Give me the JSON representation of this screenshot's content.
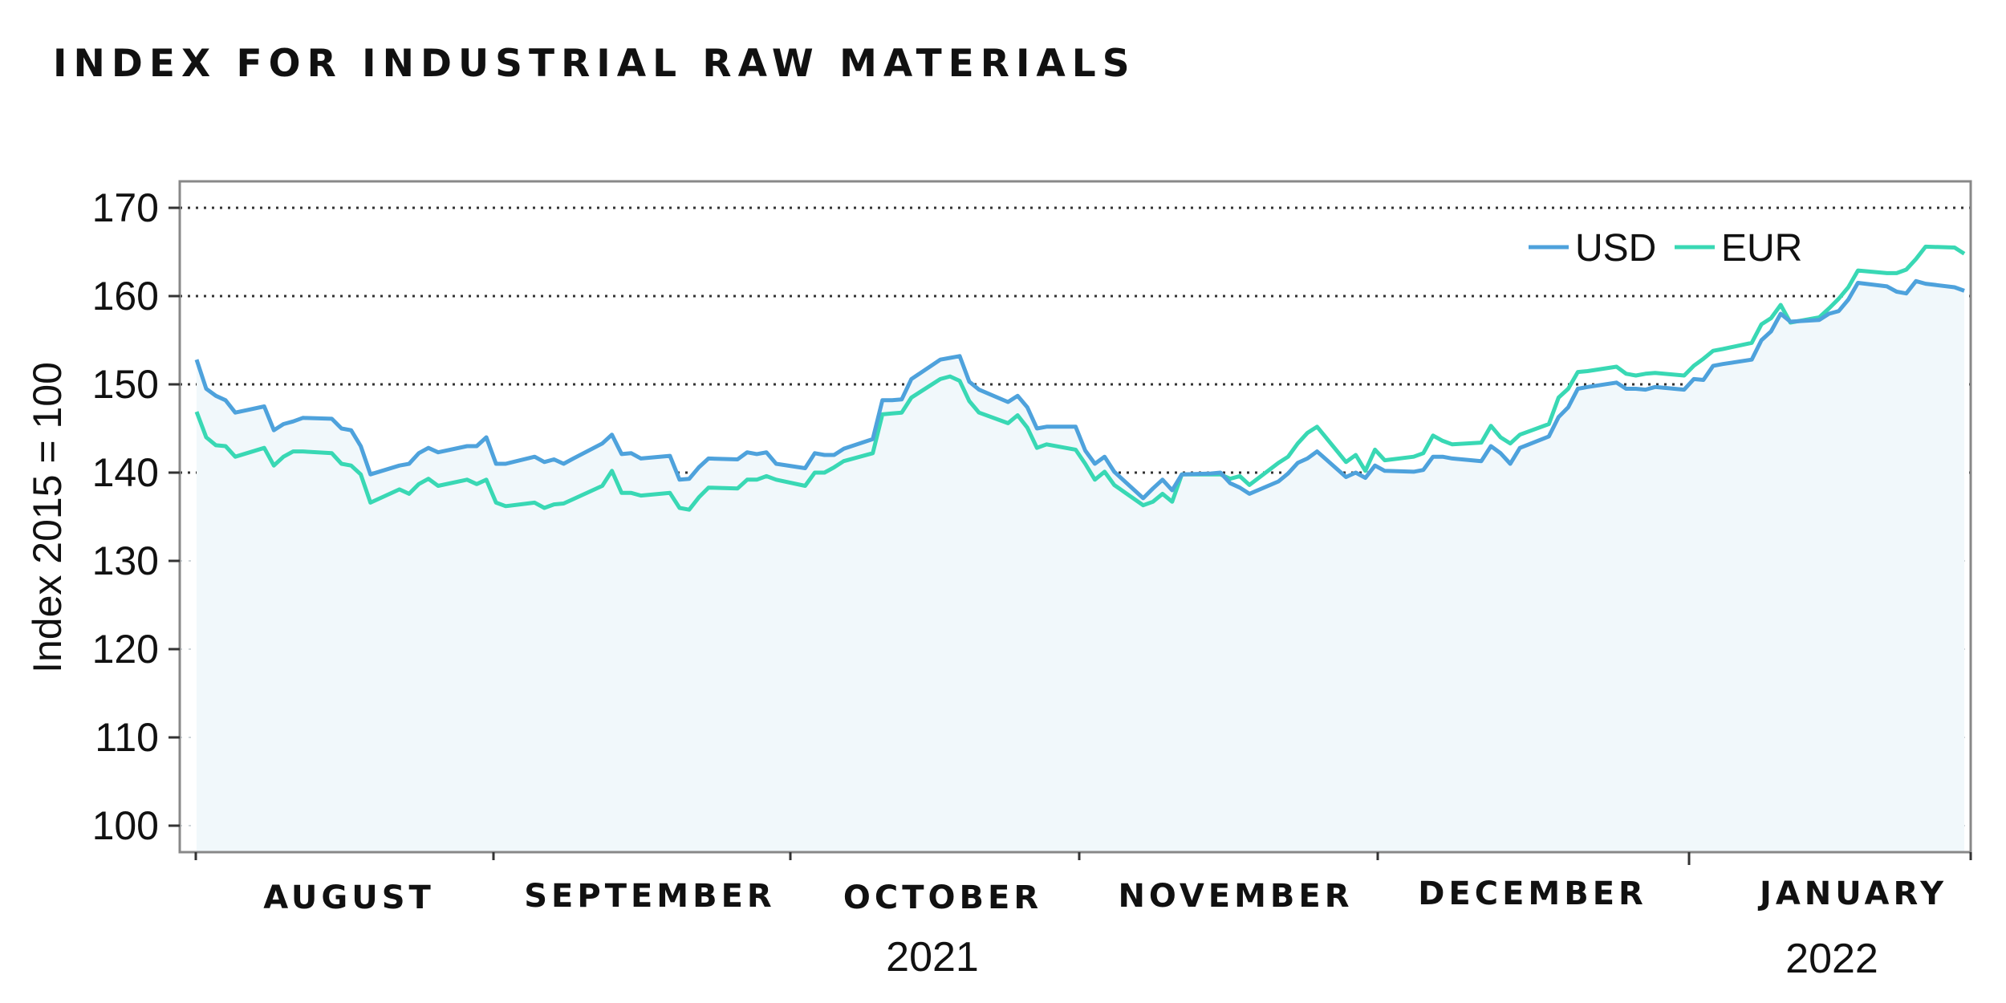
{
  "title": "INDEX FOR INDUSTRIAL RAW MATERIALS",
  "chart_data": {
    "type": "line",
    "title": "INDEX FOR INDUSTRIAL RAW MATERIALS",
    "ylabel": "Index 2015 = 100",
    "xlabel": "",
    "ylim": [
      97,
      173
    ],
    "y_ticks": [
      100,
      110,
      120,
      130,
      140,
      150,
      160,
      170
    ],
    "grid": "horizontal dotted, major lines at 140, 150, 160, 170",
    "legend_position": "top-right",
    "area_fill_under": "USD",
    "month_labels": [
      "AUGUST",
      "SEPTEMBER",
      "OCTOBER",
      "NOVEMBER",
      "DECEMBER",
      "JANUARY"
    ],
    "year_labels": [
      {
        "text": "2021",
        "under": "OCTOBER"
      },
      {
        "text": "2022",
        "under": "JANUARY"
      }
    ],
    "x_start": "2021-07-26",
    "x_end": "2022-01-26",
    "series": [
      {
        "name": "USD",
        "color": "#4ea2dc",
        "points": [
          [
            "2021-07-26",
            152.8
          ],
          [
            "2021-07-27",
            149.5
          ],
          [
            "2021-07-28",
            148.7
          ],
          [
            "2021-07-29",
            148.2
          ],
          [
            "2021-07-30",
            146.8
          ],
          [
            "2021-08-02",
            147.5
          ],
          [
            "2021-08-03",
            144.8
          ],
          [
            "2021-08-04",
            145.5
          ],
          [
            "2021-08-05",
            145.8
          ],
          [
            "2021-08-06",
            146.2
          ],
          [
            "2021-08-09",
            146.1
          ],
          [
            "2021-08-10",
            145.0
          ],
          [
            "2021-08-11",
            144.8
          ],
          [
            "2021-08-12",
            143.0
          ],
          [
            "2021-08-13",
            139.8
          ],
          [
            "2021-08-16",
            140.8
          ],
          [
            "2021-08-17",
            141.0
          ],
          [
            "2021-08-18",
            142.2
          ],
          [
            "2021-08-19",
            142.8
          ],
          [
            "2021-08-20",
            142.3
          ],
          [
            "2021-08-23",
            143.0
          ],
          [
            "2021-08-24",
            143.0
          ],
          [
            "2021-08-25",
            144.0
          ],
          [
            "2021-08-26",
            141.0
          ],
          [
            "2021-08-27",
            141.0
          ],
          [
            "2021-08-30",
            141.8
          ],
          [
            "2021-08-31",
            141.2
          ],
          [
            "2021-09-01",
            141.5
          ],
          [
            "2021-09-02",
            141.0
          ],
          [
            "2021-09-03",
            141.6
          ],
          [
            "2021-09-06",
            143.3
          ],
          [
            "2021-09-07",
            144.3
          ],
          [
            "2021-09-08",
            142.1
          ],
          [
            "2021-09-09",
            142.2
          ],
          [
            "2021-09-10",
            141.6
          ],
          [
            "2021-09-13",
            141.9
          ],
          [
            "2021-09-14",
            139.2
          ],
          [
            "2021-09-15",
            139.3
          ],
          [
            "2021-09-16",
            140.6
          ],
          [
            "2021-09-17",
            141.6
          ],
          [
            "2021-09-20",
            141.5
          ],
          [
            "2021-09-21",
            142.3
          ],
          [
            "2021-09-22",
            142.1
          ],
          [
            "2021-09-23",
            142.3
          ],
          [
            "2021-09-24",
            141.0
          ],
          [
            "2021-09-27",
            140.5
          ],
          [
            "2021-09-28",
            142.2
          ],
          [
            "2021-09-29",
            142.0
          ],
          [
            "2021-09-30",
            142.0
          ],
          [
            "2021-10-01",
            142.7
          ],
          [
            "2021-10-04",
            143.8
          ],
          [
            "2021-10-05",
            148.2
          ],
          [
            "2021-10-06",
            148.2
          ],
          [
            "2021-10-07",
            148.3
          ],
          [
            "2021-10-08",
            150.6
          ],
          [
            "2021-10-11",
            152.8
          ],
          [
            "2021-10-12",
            153.0
          ],
          [
            "2021-10-13",
            153.2
          ],
          [
            "2021-10-14",
            150.3
          ],
          [
            "2021-10-15",
            149.4
          ],
          [
            "2021-10-18",
            148.0
          ],
          [
            "2021-10-19",
            148.7
          ],
          [
            "2021-10-20",
            147.4
          ],
          [
            "2021-10-21",
            145.0
          ],
          [
            "2021-10-22",
            145.2
          ],
          [
            "2021-10-25",
            145.2
          ],
          [
            "2021-10-26",
            142.5
          ],
          [
            "2021-10-27",
            141.0
          ],
          [
            "2021-10-28",
            141.8
          ],
          [
            "2021-10-29",
            140.1
          ],
          [
            "2021-11-01",
            137.1
          ],
          [
            "2021-11-02",
            138.2
          ],
          [
            "2021-11-03",
            139.2
          ],
          [
            "2021-11-04",
            138.0
          ],
          [
            "2021-11-05",
            139.8
          ],
          [
            "2021-11-08",
            139.9
          ],
          [
            "2021-11-09",
            140.0
          ],
          [
            "2021-11-10",
            138.8
          ],
          [
            "2021-11-11",
            138.3
          ],
          [
            "2021-11-12",
            137.6
          ],
          [
            "2021-11-15",
            139.0
          ],
          [
            "2021-11-16",
            139.9
          ],
          [
            "2021-11-17",
            141.1
          ],
          [
            "2021-11-18",
            141.6
          ],
          [
            "2021-11-19",
            142.4
          ],
          [
            "2021-11-22",
            139.5
          ],
          [
            "2021-11-23",
            140.0
          ],
          [
            "2021-11-24",
            139.4
          ],
          [
            "2021-11-25",
            140.8
          ],
          [
            "2021-11-26",
            140.2
          ],
          [
            "2021-11-29",
            140.1
          ],
          [
            "2021-11-30",
            140.3
          ],
          [
            "2021-12-01",
            141.8
          ],
          [
            "2021-12-02",
            141.8
          ],
          [
            "2021-12-03",
            141.6
          ],
          [
            "2021-12-06",
            141.3
          ],
          [
            "2021-12-07",
            143.0
          ],
          [
            "2021-12-08",
            142.2
          ],
          [
            "2021-12-09",
            141.0
          ],
          [
            "2021-12-10",
            142.8
          ],
          [
            "2021-12-13",
            144.1
          ],
          [
            "2021-12-14",
            146.3
          ],
          [
            "2021-12-15",
            147.4
          ],
          [
            "2021-12-16",
            149.5
          ],
          [
            "2021-12-17",
            149.7
          ],
          [
            "2021-12-20",
            150.2
          ],
          [
            "2021-12-21",
            149.5
          ],
          [
            "2021-12-22",
            149.5
          ],
          [
            "2021-12-23",
            149.4
          ],
          [
            "2021-12-24",
            149.7
          ],
          [
            "2021-12-27",
            149.4
          ],
          [
            "2021-12-28",
            150.6
          ],
          [
            "2021-12-29",
            150.5
          ],
          [
            "2021-12-30",
            152.1
          ],
          [
            "2021-12-31",
            152.3
          ],
          [
            "2022-01-03",
            152.8
          ],
          [
            "2022-01-04",
            155.0
          ],
          [
            "2022-01-05",
            156.0
          ],
          [
            "2022-01-06",
            158.0
          ],
          [
            "2022-01-07",
            157.1
          ],
          [
            "2022-01-10",
            157.3
          ],
          [
            "2022-01-11",
            158.0
          ],
          [
            "2022-01-12",
            158.3
          ],
          [
            "2022-01-13",
            159.6
          ],
          [
            "2022-01-14",
            161.5
          ],
          [
            "2022-01-17",
            161.1
          ],
          [
            "2022-01-18",
            160.5
          ],
          [
            "2022-01-19",
            160.3
          ],
          [
            "2022-01-20",
            161.7
          ],
          [
            "2022-01-21",
            161.4
          ],
          [
            "2022-01-24",
            161.0
          ],
          [
            "2022-01-25",
            160.6
          ]
        ]
      },
      {
        "name": "EUR",
        "color": "#39d8b4",
        "points": [
          [
            "2021-07-26",
            146.9
          ],
          [
            "2021-07-27",
            144.0
          ],
          [
            "2021-07-28",
            143.1
          ],
          [
            "2021-07-29",
            143.0
          ],
          [
            "2021-07-30",
            141.8
          ],
          [
            "2021-08-02",
            142.8
          ],
          [
            "2021-08-03",
            140.8
          ],
          [
            "2021-08-04",
            141.8
          ],
          [
            "2021-08-05",
            142.4
          ],
          [
            "2021-08-06",
            142.4
          ],
          [
            "2021-08-09",
            142.2
          ],
          [
            "2021-08-10",
            141.0
          ],
          [
            "2021-08-11",
            140.8
          ],
          [
            "2021-08-12",
            139.8
          ],
          [
            "2021-08-13",
            136.6
          ],
          [
            "2021-08-16",
            138.1
          ],
          [
            "2021-08-17",
            137.6
          ],
          [
            "2021-08-18",
            138.7
          ],
          [
            "2021-08-19",
            139.3
          ],
          [
            "2021-08-20",
            138.5
          ],
          [
            "2021-08-23",
            139.2
          ],
          [
            "2021-08-24",
            138.7
          ],
          [
            "2021-08-25",
            139.2
          ],
          [
            "2021-08-26",
            136.6
          ],
          [
            "2021-08-27",
            136.2
          ],
          [
            "2021-08-30",
            136.6
          ],
          [
            "2021-08-31",
            136.0
          ],
          [
            "2021-09-01",
            136.4
          ],
          [
            "2021-09-02",
            136.5
          ],
          [
            "2021-09-03",
            137.0
          ],
          [
            "2021-09-06",
            138.5
          ],
          [
            "2021-09-07",
            140.2
          ],
          [
            "2021-09-08",
            137.7
          ],
          [
            "2021-09-09",
            137.7
          ],
          [
            "2021-09-10",
            137.4
          ],
          [
            "2021-09-13",
            137.7
          ],
          [
            "2021-09-14",
            136.0
          ],
          [
            "2021-09-15",
            135.8
          ],
          [
            "2021-09-16",
            137.2
          ],
          [
            "2021-09-17",
            138.3
          ],
          [
            "2021-09-20",
            138.2
          ],
          [
            "2021-09-21",
            139.2
          ],
          [
            "2021-09-22",
            139.2
          ],
          [
            "2021-09-23",
            139.6
          ],
          [
            "2021-09-24",
            139.2
          ],
          [
            "2021-09-27",
            138.5
          ],
          [
            "2021-09-28",
            140.0
          ],
          [
            "2021-09-29",
            140.0
          ],
          [
            "2021-09-30",
            140.6
          ],
          [
            "2021-10-01",
            141.3
          ],
          [
            "2021-10-04",
            142.2
          ],
          [
            "2021-10-05",
            146.6
          ],
          [
            "2021-10-06",
            146.7
          ],
          [
            "2021-10-07",
            146.8
          ],
          [
            "2021-10-08",
            148.5
          ],
          [
            "2021-10-11",
            150.6
          ],
          [
            "2021-10-12",
            150.9
          ],
          [
            "2021-10-13",
            150.4
          ],
          [
            "2021-10-14",
            148.1
          ],
          [
            "2021-10-15",
            146.8
          ],
          [
            "2021-10-18",
            145.6
          ],
          [
            "2021-10-19",
            146.5
          ],
          [
            "2021-10-20",
            145.1
          ],
          [
            "2021-10-21",
            142.8
          ],
          [
            "2021-10-22",
            143.2
          ],
          [
            "2021-10-25",
            142.6
          ],
          [
            "2021-10-26",
            141.0
          ],
          [
            "2021-10-27",
            139.2
          ],
          [
            "2021-10-28",
            140.1
          ],
          [
            "2021-10-29",
            138.6
          ],
          [
            "2021-11-01",
            136.3
          ],
          [
            "2021-11-02",
            136.7
          ],
          [
            "2021-11-03",
            137.6
          ],
          [
            "2021-11-04",
            136.7
          ],
          [
            "2021-11-05",
            139.8
          ],
          [
            "2021-11-08",
            139.8
          ],
          [
            "2021-11-09",
            139.8
          ],
          [
            "2021-11-10",
            139.3
          ],
          [
            "2021-11-11",
            139.6
          ],
          [
            "2021-11-12",
            138.6
          ],
          [
            "2021-11-15",
            141.1
          ],
          [
            "2021-11-16",
            141.8
          ],
          [
            "2021-11-17",
            143.3
          ],
          [
            "2021-11-18",
            144.5
          ],
          [
            "2021-11-19",
            145.2
          ],
          [
            "2021-11-22",
            141.2
          ],
          [
            "2021-11-23",
            142.0
          ],
          [
            "2021-11-24",
            140.2
          ],
          [
            "2021-11-25",
            142.6
          ],
          [
            "2021-11-26",
            141.4
          ],
          [
            "2021-11-29",
            141.8
          ],
          [
            "2021-11-30",
            142.2
          ],
          [
            "2021-12-01",
            144.2
          ],
          [
            "2021-12-02",
            143.6
          ],
          [
            "2021-12-03",
            143.2
          ],
          [
            "2021-12-06",
            143.4
          ],
          [
            "2021-12-07",
            145.3
          ],
          [
            "2021-12-08",
            144.0
          ],
          [
            "2021-12-09",
            143.3
          ],
          [
            "2021-12-10",
            144.3
          ],
          [
            "2021-12-13",
            145.5
          ],
          [
            "2021-12-14",
            148.5
          ],
          [
            "2021-12-15",
            149.5
          ],
          [
            "2021-12-16",
            151.4
          ],
          [
            "2021-12-17",
            151.5
          ],
          [
            "2021-12-20",
            152.0
          ],
          [
            "2021-12-21",
            151.2
          ],
          [
            "2021-12-22",
            151.0
          ],
          [
            "2021-12-23",
            151.2
          ],
          [
            "2021-12-24",
            151.3
          ],
          [
            "2021-12-27",
            151.0
          ],
          [
            "2021-12-28",
            152.1
          ],
          [
            "2021-12-29",
            152.9
          ],
          [
            "2021-12-30",
            153.8
          ],
          [
            "2021-12-31",
            154.0
          ],
          [
            "2022-01-03",
            154.7
          ],
          [
            "2022-01-04",
            156.8
          ],
          [
            "2022-01-05",
            157.5
          ],
          [
            "2022-01-06",
            159.0
          ],
          [
            "2022-01-07",
            157.0
          ],
          [
            "2022-01-10",
            157.6
          ],
          [
            "2022-01-11",
            158.6
          ],
          [
            "2022-01-12",
            159.7
          ],
          [
            "2022-01-13",
            161.0
          ],
          [
            "2022-01-14",
            162.9
          ],
          [
            "2022-01-17",
            162.6
          ],
          [
            "2022-01-18",
            162.6
          ],
          [
            "2022-01-19",
            163.0
          ],
          [
            "2022-01-20",
            164.2
          ],
          [
            "2022-01-21",
            165.6
          ],
          [
            "2022-01-24",
            165.5
          ],
          [
            "2022-01-25",
            164.8
          ]
        ]
      }
    ]
  }
}
